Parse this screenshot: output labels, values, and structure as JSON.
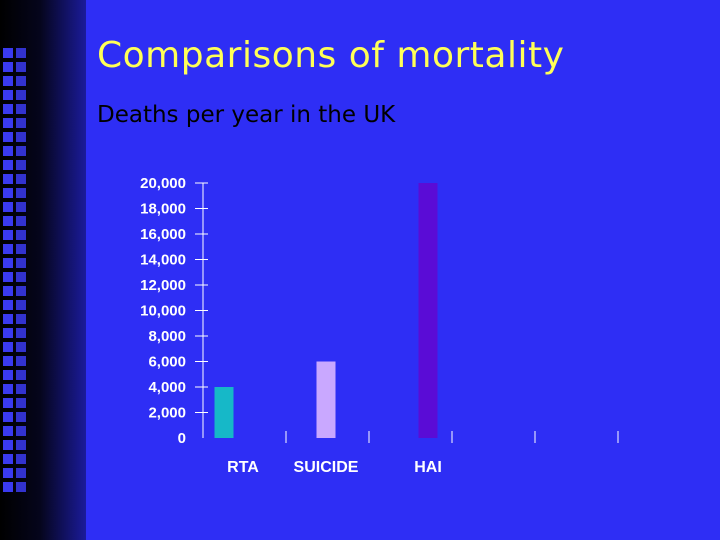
{
  "slide": {
    "title": "Comparisons of mortality",
    "subtitle": "Deaths per year in the UK"
  },
  "colors": {
    "background": "#2e2ef5",
    "title": "#ffff57",
    "subtitle": "#000000",
    "axis_text": "#ffffff"
  },
  "chart_data": {
    "type": "bar",
    "categories": [
      "RTA",
      "SUICIDE",
      "HAI",
      "",
      ""
    ],
    "values": [
      4000,
      6000,
      20000,
      null,
      null
    ],
    "bar_colors": [
      "#16b8c8",
      "#c9a8ff",
      "#5a0cd6"
    ],
    "y_ticks": [
      "20,000",
      "18,000",
      "16,000",
      "14,000",
      "12,000",
      "10,000",
      "8,000",
      "6,000",
      "4,000",
      "2,000",
      "0"
    ],
    "ylim": [
      0,
      20000
    ],
    "title": "",
    "xlabel": "",
    "ylabel": "",
    "grid": false,
    "legend": "none"
  }
}
